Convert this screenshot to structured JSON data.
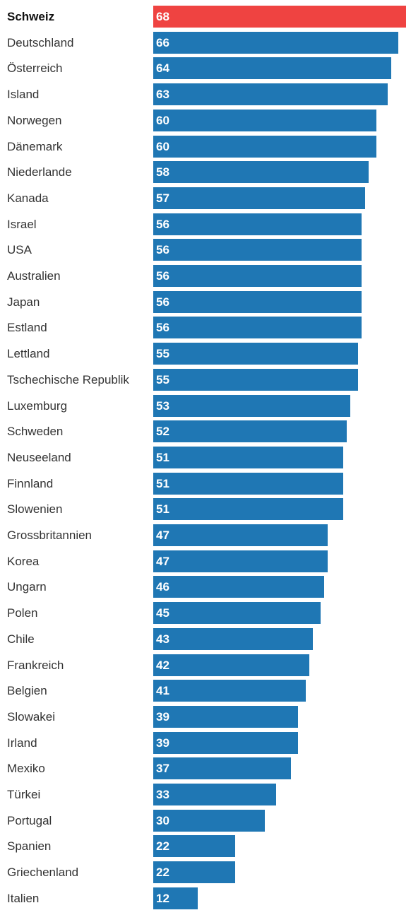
{
  "chart_data": {
    "type": "bar",
    "orientation": "horizontal",
    "categories": [
      "Schweiz",
      "Deutschland",
      "Österreich",
      "Island",
      "Norwegen",
      "Dänemark",
      "Niederlande",
      "Kanada",
      "Israel",
      "USA",
      "Australien",
      "Japan",
      "Estland",
      "Lettland",
      "Tschechische Republik",
      "Luxemburg",
      "Schweden",
      "Neuseeland",
      "Finnland",
      "Slowenien",
      "Grossbritannien",
      "Korea",
      "Ungarn",
      "Polen",
      "Chile",
      "Frankreich",
      "Belgien",
      "Slowakei",
      "Irland",
      "Mexiko",
      "Türkei",
      "Portugal",
      "Spanien",
      "Griechenland",
      "Italien"
    ],
    "values": [
      68,
      66,
      64,
      63,
      60,
      60,
      58,
      57,
      56,
      56,
      56,
      56,
      56,
      55,
      55,
      53,
      52,
      51,
      51,
      51,
      47,
      47,
      46,
      45,
      43,
      42,
      41,
      39,
      39,
      37,
      33,
      30,
      22,
      22,
      12
    ],
    "highlight": "Schweiz",
    "grid": false,
    "legend": "none",
    "xlim": [
      0,
      68
    ]
  },
  "colors": {
    "highlight": "#ef4341",
    "bar": "#1f77b4"
  }
}
